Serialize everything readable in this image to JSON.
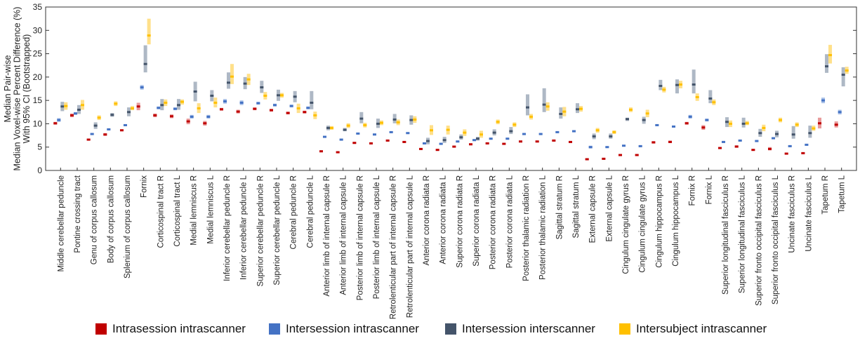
{
  "chart_data": {
    "type": "scatter",
    "title": "",
    "ylabel_lines": [
      "Median Pair-wise",
      "Median Voxel-wise Percent Difference (%)",
      "With 95% CI (Bootstrapped)"
    ],
    "xlabel": "",
    "ylim": [
      0,
      35
    ],
    "yticks": [
      0,
      5,
      10,
      15,
      20,
      25,
      30,
      35
    ],
    "grid": false,
    "legend_position": "bottom",
    "categories": [
      "Middle cerebellar peduncle",
      "Pontine crossing tract",
      "Genu of corpus callosum",
      "Body of corpus callosum",
      "Splenium of corpus callosum",
      "Fornix",
      "Corticospinal tract R",
      "Corticospinal tract L",
      "Medial lemniscus R",
      "Medial lemniscus L",
      "Inferior cerebellar peduncle R",
      "Inferior cerebellar peduncle L",
      "Superior cerebellar peduncle R",
      "Superior cerebellar peduncle L",
      "Cerebral peduncle R",
      "Cerebral peduncle L",
      "Anterior limb of internal capsule R",
      "Anterior limb of internal capsule L",
      "Posterior limb of internal capsule R",
      "Posterior limb of internal capsule L",
      "Retrolenticular part of internal capsule R",
      "Retrolenticular part of internal capsule L",
      "Anterior corona radiata R",
      "Anterior corona radiata L",
      "Superior corona radiata R",
      "Superior corona radiata L",
      "Posterior corona radiata R",
      "Posterior corona radiata L",
      "Posterior thalamic radiation R",
      "Posterior thalamic radiation L",
      "Sagittal stratum R",
      "Sagittal stratum L",
      "External capsule R",
      "External capsule L",
      "Cingulum cingulate gyrus R",
      "Cingulum cingulate gyrus L",
      "Cingulum hippocampus R",
      "Cingulum hippocampus L",
      "Fornix R",
      "Fornix L",
      "Superior longitudinal fasciculus R",
      "Superior longitudinal fasciculus L",
      "Superior fronto occipital fasciculus R",
      "Superior fronto occipital fasciculus L",
      "Uncinate fasciculus R",
      "Uncinate fasciculus L",
      "Tapetum R",
      "Tapetum L"
    ],
    "series": [
      {
        "name": "Intrasession intrascanner",
        "color": "#c00000",
        "ci_color": "#e89a9a",
        "values": [
          10.1,
          11.8,
          6.6,
          7.7,
          8.6,
          13.7,
          11.8,
          11.6,
          10.5,
          10.1,
          13.1,
          12.6,
          13.2,
          12.9,
          12.3,
          12.5,
          4.1,
          3.9,
          5.9,
          5.8,
          6.4,
          6.1,
          4.6,
          4.4,
          5.1,
          5.6,
          5.8,
          5.7,
          6.2,
          6.2,
          6.4,
          6.1,
          2.4,
          2.5,
          3.3,
          3.3,
          6.0,
          6.1,
          10.1,
          9.2,
          4.8,
          5.1,
          4.4,
          4.6,
          3.6,
          3.7,
          10.1,
          9.8
        ],
        "ci_low": [
          9.8,
          11.4,
          6.4,
          7.4,
          8.4,
          12.9,
          11.4,
          11.2,
          9.9,
          9.6,
          12.8,
          12.2,
          12.9,
          12.6,
          12.0,
          12.2,
          3.9,
          3.7,
          5.7,
          5.6,
          6.2,
          5.9,
          4.4,
          4.2,
          4.9,
          5.4,
          5.6,
          5.5,
          6.0,
          6.0,
          6.2,
          5.9,
          2.2,
          2.3,
          3.1,
          3.1,
          5.8,
          5.9,
          9.8,
          8.7,
          4.6,
          4.9,
          4.2,
          4.3,
          3.4,
          3.5,
          9.0,
          9.2
        ],
        "ci_high": [
          10.4,
          12.2,
          6.8,
          8.0,
          8.8,
          14.5,
          12.2,
          12.0,
          11.1,
          10.6,
          13.4,
          13.0,
          13.5,
          13.2,
          12.6,
          12.8,
          4.3,
          4.1,
          6.1,
          6.0,
          6.6,
          6.3,
          4.8,
          4.6,
          5.3,
          5.8,
          6.0,
          5.9,
          6.4,
          6.4,
          6.6,
          6.3,
          2.6,
          2.7,
          3.5,
          3.5,
          6.3,
          6.4,
          10.4,
          9.7,
          5.0,
          5.4,
          4.6,
          5.0,
          3.8,
          3.9,
          11.3,
          10.5
        ]
      },
      {
        "name": "Intersession intrascanner",
        "color": "#4472c4",
        "ci_color": "#a9c1e8",
        "values": [
          10.8,
          12.2,
          7.8,
          8.8,
          9.7,
          17.8,
          13.4,
          13.2,
          11.5,
          11.5,
          14.8,
          14.5,
          14.4,
          14.0,
          13.8,
          13.4,
          7.2,
          6.6,
          7.9,
          7.7,
          8.2,
          8.0,
          5.8,
          5.7,
          6.2,
          6.5,
          6.8,
          6.8,
          7.8,
          7.8,
          8.2,
          8.4,
          5.0,
          5.0,
          5.3,
          5.2,
          9.7,
          9.4,
          11.5,
          10.8,
          6.1,
          6.4,
          6.3,
          6.9,
          5.2,
          5.5,
          15.0,
          12.5
        ],
        "ci_low": [
          10.4,
          11.9,
          7.6,
          8.6,
          9.5,
          17.3,
          13.1,
          12.9,
          11.1,
          11.1,
          14.3,
          14.0,
          14.1,
          13.7,
          13.5,
          13.1,
          7.0,
          6.4,
          7.7,
          7.5,
          8.0,
          7.8,
          5.6,
          5.5,
          6.0,
          6.3,
          6.6,
          6.6,
          7.6,
          7.6,
          8.0,
          8.2,
          4.7,
          4.8,
          5.1,
          5.0,
          9.5,
          9.2,
          11.1,
          10.5,
          5.9,
          6.2,
          6.1,
          6.7,
          5.0,
          5.3,
          14.4,
          12.0
        ],
        "ci_high": [
          11.2,
          12.5,
          8.0,
          9.0,
          9.9,
          18.3,
          13.7,
          13.5,
          11.9,
          11.9,
          15.3,
          15.0,
          14.7,
          14.3,
          14.1,
          13.7,
          7.4,
          6.8,
          8.1,
          7.9,
          8.4,
          8.2,
          6.0,
          5.9,
          6.4,
          6.7,
          7.0,
          7.0,
          8.0,
          8.0,
          8.4,
          8.6,
          5.3,
          5.2,
          5.5,
          5.4,
          9.9,
          9.6,
          11.9,
          11.1,
          6.3,
          6.6,
          6.5,
          7.1,
          5.4,
          5.7,
          15.6,
          13.0
        ]
      },
      {
        "name": "Intersession interscanner",
        "color": "#44546a",
        "ci_color": "#aeb8c5",
        "values": [
          13.7,
          13.0,
          9.6,
          11.9,
          12.5,
          22.8,
          14.0,
          14.0,
          16.9,
          16.0,
          18.8,
          18.6,
          17.8,
          16.1,
          15.8,
          14.5,
          9.1,
          8.7,
          11.1,
          10.0,
          10.9,
          10.8,
          6.3,
          6.5,
          7.1,
          6.8,
          8.1,
          8.4,
          13.5,
          14.1,
          12.1,
          13.1,
          7.3,
          7.3,
          11.0,
          10.8,
          18.1,
          18.3,
          18.4,
          15.4,
          10.4,
          10.0,
          8.0,
          7.8,
          7.7,
          8.0,
          22.3,
          20.5
        ],
        "ci_low": [
          12.7,
          12.1,
          8.9,
          11.5,
          11.6,
          21.0,
          12.9,
          13.0,
          14.8,
          14.8,
          17.5,
          17.4,
          16.6,
          14.9,
          14.6,
          13.1,
          8.6,
          8.4,
          10.1,
          9.1,
          10.1,
          9.8,
          5.6,
          5.9,
          6.6,
          6.4,
          7.5,
          7.8,
          11.8,
          12.5,
          11.1,
          12.3,
          6.7,
          6.8,
          10.6,
          10.0,
          17.2,
          16.5,
          16.5,
          14.4,
          9.3,
          9.2,
          7.2,
          7.1,
          6.8,
          7.0,
          20.9,
          18.0
        ],
        "ci_high": [
          14.7,
          14.0,
          10.3,
          12.3,
          13.5,
          26.8,
          15.3,
          15.3,
          19.0,
          17.2,
          21.0,
          20.0,
          19.2,
          17.3,
          17.0,
          17.0,
          9.6,
          9.1,
          12.5,
          11.1,
          12.1,
          11.8,
          7.0,
          7.2,
          7.7,
          7.2,
          8.8,
          9.3,
          16.3,
          17.6,
          13.5,
          14.4,
          7.9,
          7.9,
          11.3,
          11.5,
          19.4,
          19.5,
          21.6,
          17.2,
          11.4,
          11.3,
          8.9,
          8.5,
          9.5,
          9.6,
          24.9,
          22.1
        ]
      },
      {
        "name": "Intersubject intrascanner",
        "color": "#ffc000",
        "ci_color": "#ffe08a",
        "values": [
          13.8,
          14.0,
          11.3,
          14.3,
          13.3,
          28.9,
          14.5,
          14.7,
          13.3,
          14.5,
          20.1,
          19.5,
          16.0,
          16.1,
          13.3,
          11.8,
          9.1,
          9.6,
          9.7,
          10.2,
          10.3,
          10.9,
          8.6,
          8.7,
          8.1,
          7.7,
          10.4,
          9.8,
          11.5,
          13.7,
          12.6,
          13.2,
          8.6,
          8.2,
          13.0,
          12.2,
          17.3,
          18.4,
          15.7,
          14.6,
          10.0,
          10.1,
          9.1,
          10.8,
          9.8,
          9.0,
          24.7,
          21.4
        ],
        "ci_low": [
          13.0,
          13.0,
          10.8,
          13.8,
          12.9,
          27.0,
          13.8,
          14.1,
          12.3,
          13.5,
          18.5,
          18.3,
          15.2,
          15.6,
          12.3,
          11.0,
          8.7,
          9.1,
          9.2,
          9.7,
          9.7,
          10.2,
          7.6,
          7.7,
          7.4,
          7.0,
          9.9,
          9.3,
          10.9,
          12.8,
          11.6,
          12.6,
          8.1,
          7.8,
          12.5,
          11.4,
          16.7,
          17.6,
          14.9,
          14.0,
          9.3,
          9.7,
          8.4,
          10.3,
          9.3,
          8.5,
          22.9,
          20.7
        ],
        "ci_high": [
          14.6,
          15.1,
          11.8,
          14.8,
          13.8,
          32.5,
          15.2,
          15.2,
          14.4,
          15.6,
          22.8,
          20.7,
          16.8,
          16.6,
          14.3,
          12.6,
          9.5,
          10.1,
          10.2,
          10.7,
          10.9,
          11.6,
          9.7,
          9.6,
          8.8,
          8.5,
          10.9,
          10.3,
          12.1,
          14.6,
          13.6,
          13.8,
          9.1,
          8.6,
          13.5,
          13.0,
          17.9,
          19.2,
          16.5,
          15.2,
          10.7,
          10.6,
          9.8,
          11.3,
          10.3,
          9.6,
          26.9,
          22.2
        ]
      }
    ]
  }
}
